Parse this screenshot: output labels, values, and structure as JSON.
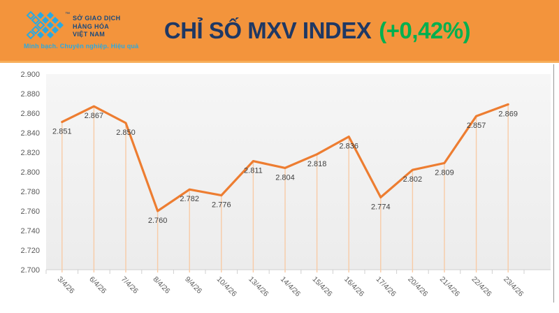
{
  "header": {
    "logo": {
      "org_lines": [
        "SỞ GIAO DỊCH",
        "HÀNG HÓA",
        "VIỆT NAM"
      ],
      "tagline": "Minh bạch. Chuyên nghiệp. Hiệu quả",
      "trademark": "™"
    },
    "title": "CHỈ SỐ MXV INDEX",
    "change": "(+0,42%)",
    "colors": {
      "band": "#F3943C",
      "band_edge": "#F7AE59",
      "title": "#1F3864",
      "change": "#00B050",
      "logo_cyan": "#2BA9E0",
      "logo_navy": "#17497E"
    }
  },
  "chart_data": {
    "type": "line",
    "title": "Chỉ số MXV INDEX",
    "xlabel": "",
    "ylabel": "",
    "categories": [
      "3/4/26",
      "6/4/26",
      "7/4/26",
      "8/4/26",
      "9/4/26",
      "10/4/26",
      "13/4/26",
      "14/4/26",
      "15/4/26",
      "16/4/26",
      "17/4/26",
      "20/4/26",
      "21/4/26",
      "22/4/26",
      "23/4/26"
    ],
    "values": [
      2851,
      2867,
      2850,
      2760,
      2782,
      2776,
      2811,
      2804,
      2818,
      2836,
      2774,
      2802,
      2809,
      2857,
      2869
    ],
    "labels": [
      "2.851",
      "2.867",
      "2.850",
      "2.760",
      "2.782",
      "2.776",
      "2.811",
      "2.804",
      "2.818",
      "2.836",
      "2.774",
      "2.802",
      "2.809",
      "2.857",
      "2.869"
    ],
    "y_ticks": [
      "2.900",
      "2.880",
      "2.860",
      "2.840",
      "2.820",
      "2.800",
      "2.780",
      "2.760",
      "2.740",
      "2.720",
      "2.700"
    ],
    "ylim": [
      2700,
      2900
    ],
    "grid": false,
    "legend": false,
    "line_color": "#ED7D31",
    "dropline_color": "#F8CBA6",
    "plot_bg_top": "#F6F6F6",
    "plot_bg_bottom": "#ECECEC",
    "axis_line_color": "#D6D6D6",
    "tick_color": "#CFCFCF",
    "tick_label_color": "#595959",
    "data_label_color": "#404040"
  }
}
